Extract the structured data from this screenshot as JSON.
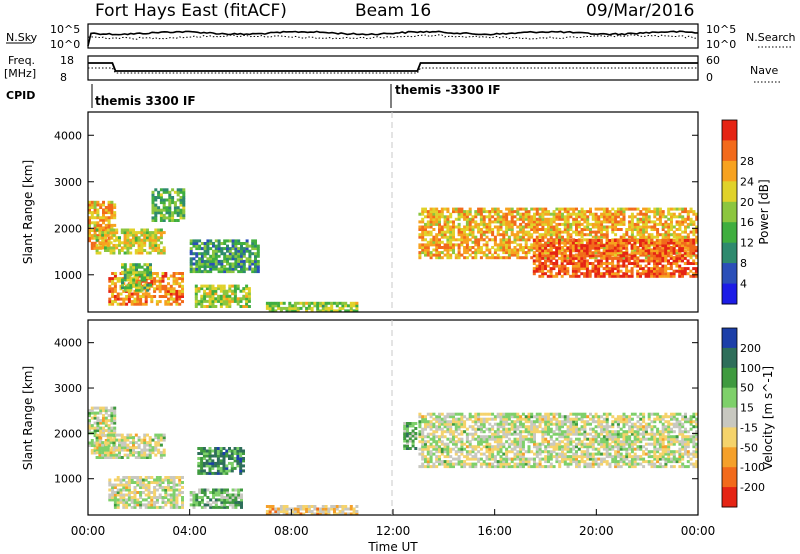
{
  "header": {
    "title": "Fort Hays East (fitACF)",
    "beam": "Beam 16",
    "date": "09/Mar/2016"
  },
  "status_panels": {
    "nsky_label": "N.Sky",
    "nsky_ticks": [
      "10^5",
      "10^0"
    ],
    "nsearch_label": "N.Search",
    "nsearch_ticks": [
      "10^5",
      "10^0"
    ],
    "freq_label_1": "Freq.",
    "freq_label_2": "[MHz]",
    "freq_ticks": [
      "18",
      "8"
    ],
    "nave_label": "Nave",
    "nave_ticks": [
      "60",
      "0"
    ],
    "cpid_label": "CPID",
    "cpid_segments": [
      "themis 3300 IF",
      "themis -3300 IF"
    ]
  },
  "chart_data": [
    {
      "type": "heatmap",
      "name": "power",
      "ylabel": "Slant Range [km]",
      "xlabel": "",
      "xlim": [
        0,
        24
      ],
      "ylim": [
        200,
        4500
      ],
      "yticks": [
        "1000",
        "2000",
        "3000",
        "4000"
      ],
      "colorbar_label": "Power [dB]",
      "colorbar_ticks": [
        "4",
        "8",
        "12",
        "16",
        "20",
        "24",
        "28"
      ],
      "colorbar_colors": [
        "#1c1ce6",
        "#2b4fb8",
        "#2e8a6e",
        "#3fae3f",
        "#8cc63f",
        "#e0d22a",
        "#f7a21f",
        "#f26a1b",
        "#e52414"
      ],
      "regions": [
        {
          "t0": 0.0,
          "t1": 1.0,
          "r0": 1600,
          "r1": 2600,
          "level": 0.7
        },
        {
          "t0": 0.3,
          "t1": 3.0,
          "r0": 1500,
          "r1": 2000,
          "level": 0.6
        },
        {
          "t0": 0.8,
          "t1": 3.7,
          "r0": 400,
          "r1": 1100,
          "level": 0.75
        },
        {
          "t0": 1.3,
          "t1": 2.5,
          "r0": 700,
          "r1": 1300,
          "level": 0.45
        },
        {
          "t0": 2.5,
          "t1": 3.8,
          "r0": 2200,
          "r1": 2900,
          "level": 0.4
        },
        {
          "t0": 4.0,
          "t1": 6.7,
          "r0": 1100,
          "r1": 1800,
          "level": 0.35
        },
        {
          "t0": 4.2,
          "t1": 6.3,
          "r0": 350,
          "r1": 800,
          "level": 0.55
        },
        {
          "t0": 7.0,
          "t1": 10.6,
          "r0": 200,
          "r1": 450,
          "level": 0.5
        },
        {
          "t0": 13.0,
          "t1": 24.0,
          "r0": 1400,
          "r1": 2500,
          "level": 0.7
        },
        {
          "t0": 17.5,
          "t1": 24.0,
          "r0": 1000,
          "r1": 1800,
          "level": 0.85
        }
      ]
    },
    {
      "type": "heatmap",
      "name": "velocity",
      "ylabel": "Slant Range [km]",
      "xlabel": "Time UT",
      "xlim": [
        0,
        24
      ],
      "ylim": [
        200,
        4500
      ],
      "yticks": [
        "1000",
        "2000",
        "3000",
        "4000"
      ],
      "xticks": [
        "00:00",
        "04:00",
        "08:00",
        "12:00",
        "16:00",
        "20:00",
        "00:00"
      ],
      "colorbar_label": "Velocity [m s^-1]",
      "colorbar_ticks": [
        "200",
        "100",
        "50",
        "15",
        "-15",
        "-50",
        "-100",
        "-200"
      ],
      "colorbar_colors": [
        "#1c3fa8",
        "#2e6e5a",
        "#3f9a3f",
        "#7ed06a",
        "#c8c8c0",
        "#f5d36b",
        "#f5a02a",
        "#f26a1b",
        "#e52414"
      ],
      "regions": [
        {
          "t0": 0.0,
          "t1": 1.0,
          "r0": 1600,
          "r1": 2600,
          "level": 0.5
        },
        {
          "t0": 0.3,
          "t1": 3.0,
          "r0": 1500,
          "r1": 2000,
          "level": 0.5
        },
        {
          "t0": 0.8,
          "t1": 3.7,
          "r0": 400,
          "r1": 1100,
          "level": 0.5
        },
        {
          "t0": 4.3,
          "t1": 6.1,
          "r0": 1150,
          "r1": 1750,
          "level": 0.25
        },
        {
          "t0": 4.0,
          "t1": 6.0,
          "r0": 400,
          "r1": 800,
          "level": 0.35
        },
        {
          "t0": 7.0,
          "t1": 10.6,
          "r0": 200,
          "r1": 450,
          "level": 0.62
        },
        {
          "t0": 13.0,
          "t1": 24.0,
          "r0": 1300,
          "r1": 2500,
          "level": 0.5
        },
        {
          "t0": 12.4,
          "t1": 12.9,
          "r0": 1700,
          "r1": 2300,
          "level": 0.35
        }
      ]
    }
  ]
}
